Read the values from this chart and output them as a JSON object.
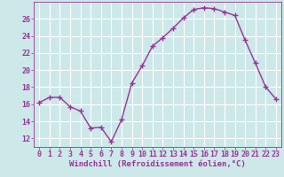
{
  "x": [
    0,
    1,
    2,
    3,
    4,
    5,
    6,
    7,
    8,
    9,
    10,
    11,
    12,
    13,
    14,
    15,
    16,
    17,
    18,
    19,
    20,
    21,
    22,
    23
  ],
  "y": [
    16.2,
    16.8,
    16.8,
    15.7,
    15.2,
    13.2,
    13.3,
    11.6,
    14.2,
    18.5,
    20.5,
    22.8,
    23.8,
    24.9,
    26.1,
    27.1,
    27.3,
    27.2,
    26.8,
    26.4,
    23.5,
    20.8,
    18.0,
    16.6
  ],
  "line_color": "#993399",
  "marker": "+",
  "bg_color": "#cce8e8",
  "grid_color": "#ffffff",
  "xlabel": "Windchill (Refroidissement éolien,°C)",
  "ylabel": "",
  "title": "",
  "xlim": [
    -0.5,
    23.5
  ],
  "ylim": [
    11.0,
    28.0
  ],
  "yticks": [
    12,
    14,
    16,
    18,
    20,
    22,
    24,
    26
  ],
  "xticks": [
    0,
    1,
    2,
    3,
    4,
    5,
    6,
    7,
    8,
    9,
    10,
    11,
    12,
    13,
    14,
    15,
    16,
    17,
    18,
    19,
    20,
    21,
    22,
    23
  ],
  "xlabel_fontsize": 6.5,
  "tick_fontsize": 6.0,
  "line_width": 1.0,
  "marker_size": 4
}
